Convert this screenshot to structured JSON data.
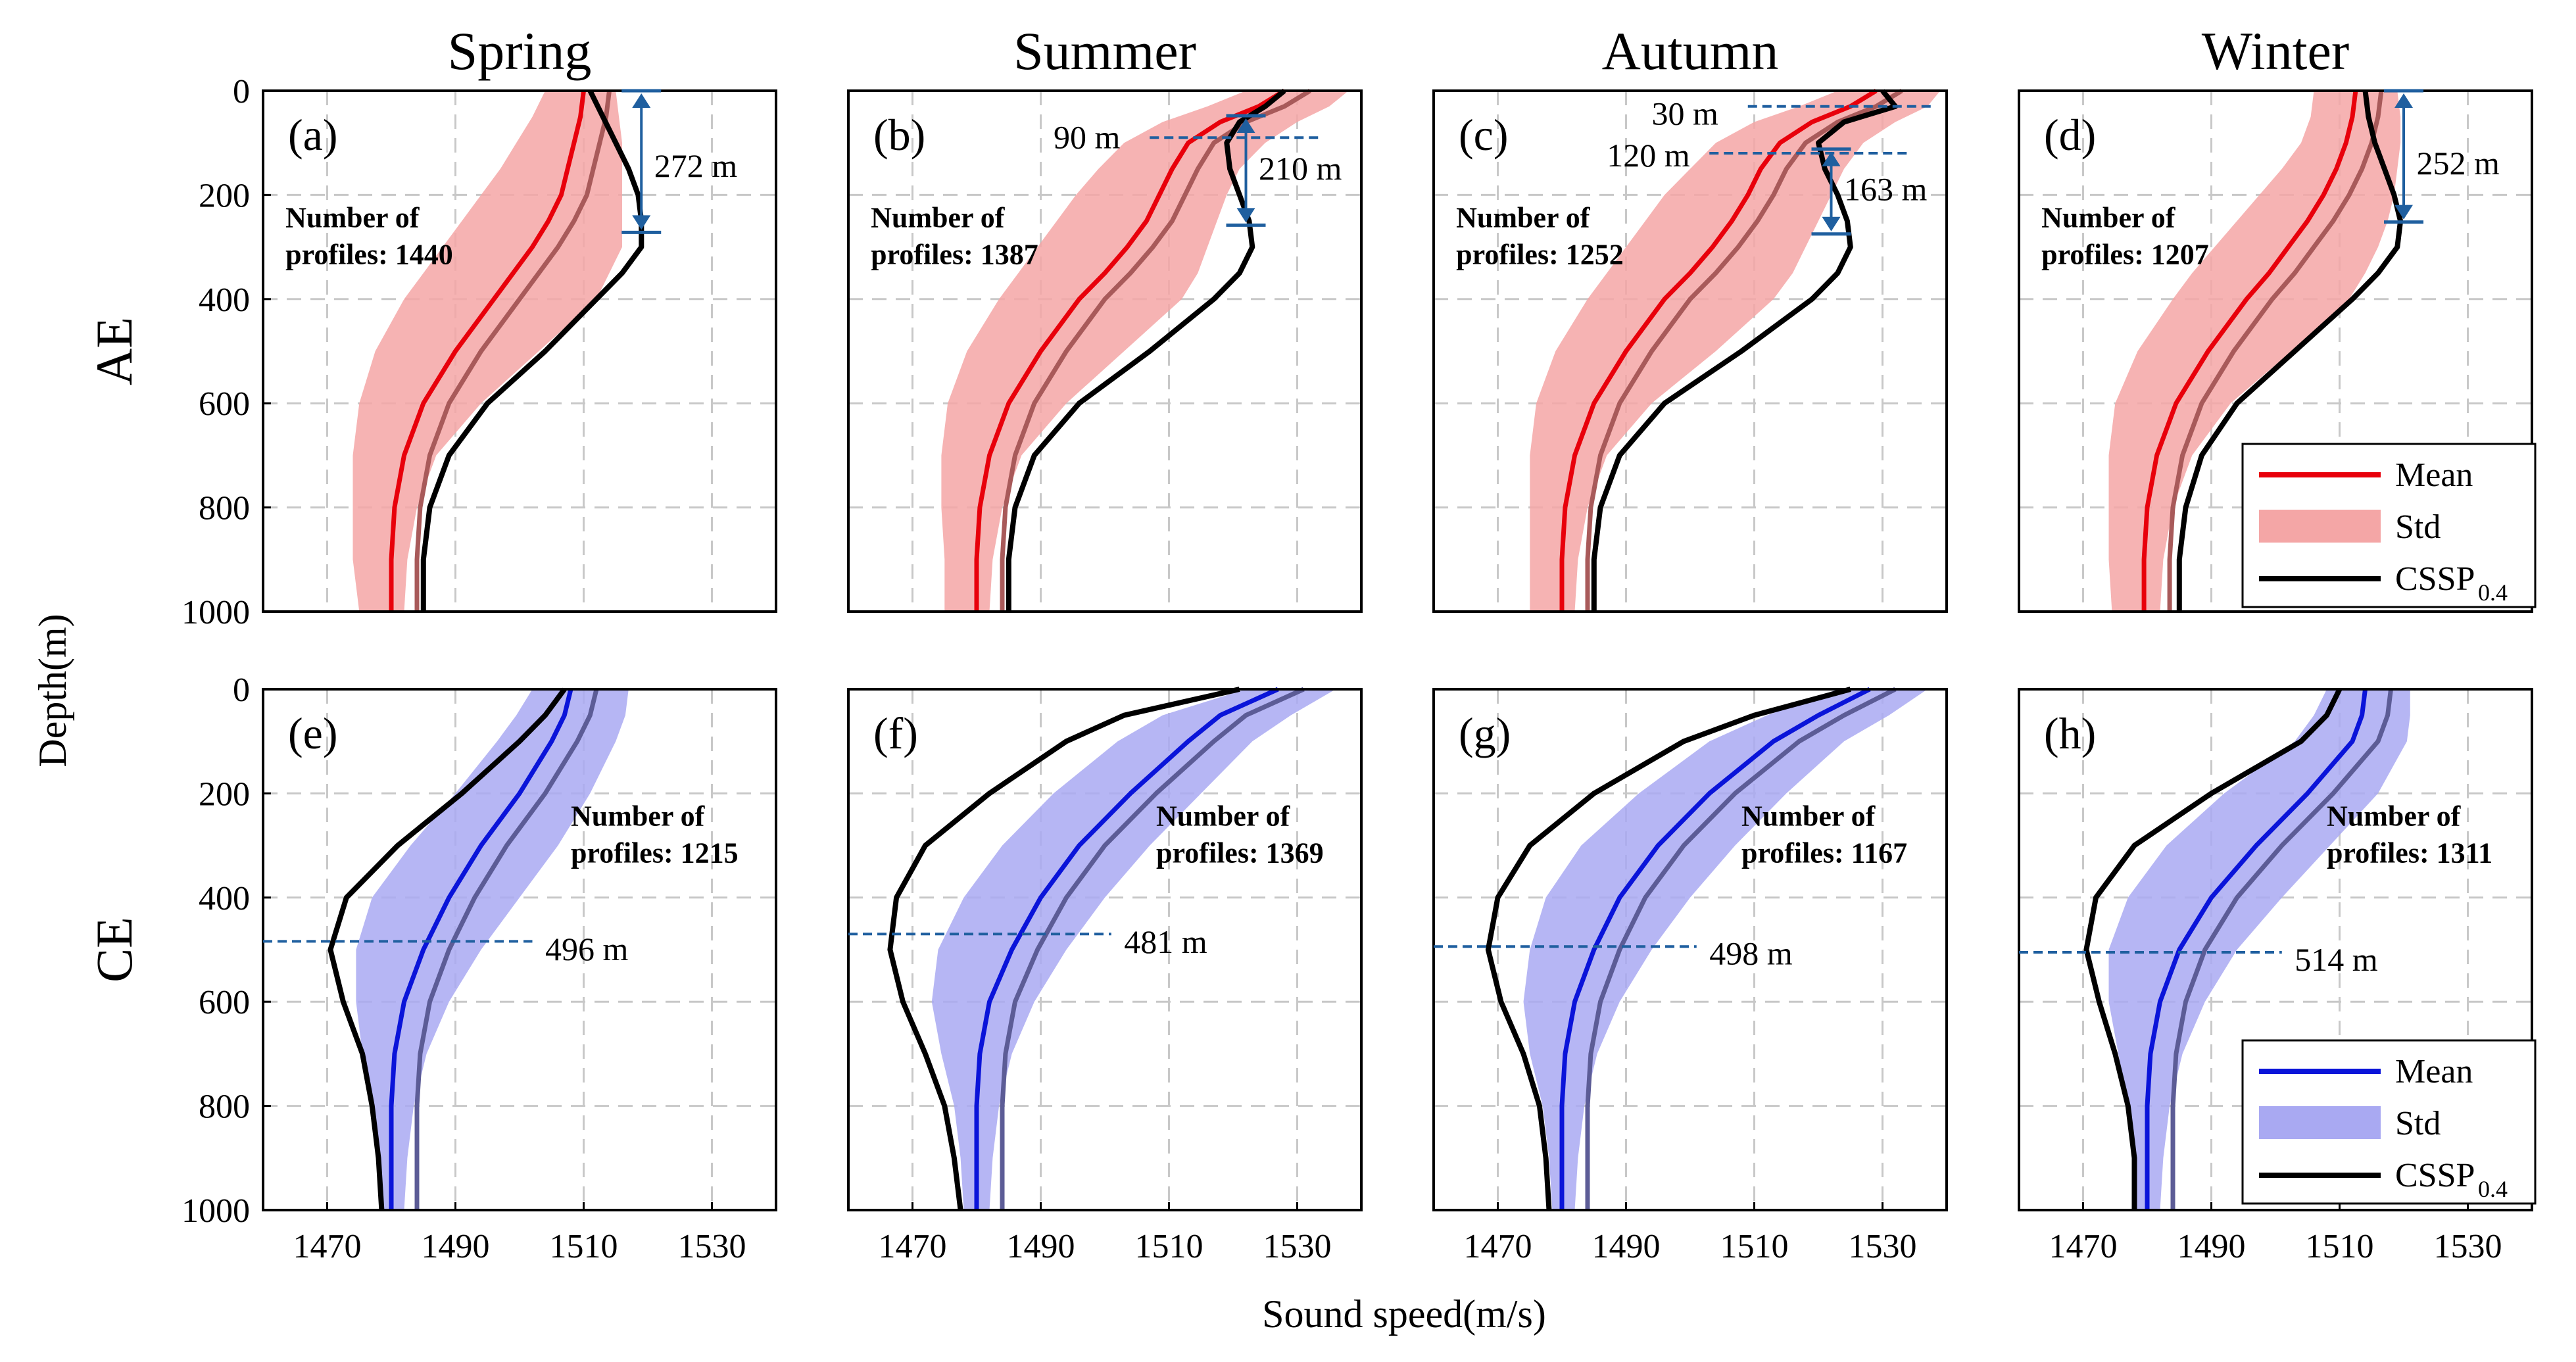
{
  "chart_data": {
    "type": "line",
    "xlabel": "Sound speed(m/s)",
    "ylabel": "Depth(m)",
    "xlim": [
      1460,
      1540
    ],
    "ylim": [
      0,
      1000
    ],
    "y_inverted": true,
    "xticks": [
      1470,
      1490,
      1510,
      1530
    ],
    "yticks": [
      0,
      200,
      400,
      600,
      800,
      1000
    ],
    "grid": true,
    "seasons": [
      "Spring",
      "Summer",
      "Autumn",
      "Winter"
    ],
    "rows": [
      "AE",
      "CE"
    ],
    "colors": {
      "ae_mean": "#e8000b",
      "ae_std": "#f4a6a6",
      "ce_mean": "#0a14d9",
      "ce_std": "#a9a9f2",
      "cssp": "#000000",
      "annotation": "#1f5f9f"
    },
    "legend_ae": {
      "items": [
        "Mean",
        "Std",
        "CSSP_0.4"
      ],
      "mean": "Mean",
      "std": "Std",
      "cssp_base": "CSSP",
      "cssp_sub": "0.4",
      "location": "bottom-right of panel (d)"
    },
    "legend_ce": {
      "items": [
        "Mean",
        "Std",
        "CSSP_0.4"
      ],
      "mean": "Mean",
      "std": "Std",
      "cssp_base": "CSSP",
      "cssp_sub": "0.4",
      "location": "bottom-right of panel (h)"
    },
    "panels": [
      {
        "label": "(a)",
        "row": "AE",
        "season": "Spring",
        "count_line1": "Number of",
        "count_line2": "profiles: 1440",
        "depth": [
          0,
          50,
          100,
          150,
          200,
          250,
          300,
          350,
          400,
          500,
          600,
          700,
          800,
          900,
          1000
        ],
        "mean": [
          1510,
          1509.5,
          1508.5,
          1507.5,
          1506.5,
          1504.5,
          1502,
          1499,
          1496,
          1490,
          1485,
          1482,
          1480.5,
          1480,
          1480
        ],
        "std_low": [
          1504,
          1502,
          1499.5,
          1497,
          1494,
          1491,
          1488,
          1485,
          1482,
          1477.5,
          1475,
          1474,
          1474,
          1474,
          1475
        ],
        "std_high": [
          1515,
          1515.5,
          1516,
          1516,
          1516,
          1516,
          1516,
          1514,
          1512,
          1503,
          1494,
          1487,
          1484,
          1482.5,
          1482
        ],
        "cssp": [
          1511,
          1513,
          1515,
          1517,
          1518.5,
          1519,
          1519,
          1516,
          1512,
          1504,
          1495,
          1489,
          1486,
          1485,
          1485
        ],
        "cssp_labels": [
          "272 m"
        ]
      },
      {
        "label": "(b)",
        "row": "AE",
        "season": "Summer",
        "count_line1": "Number of",
        "count_line2": "profiles: 1387",
        "depth": [
          0,
          30,
          60,
          100,
          150,
          200,
          250,
          300,
          350,
          400,
          500,
          600,
          700,
          800,
          900,
          1000
        ],
        "mean": [
          1528,
          1524,
          1518,
          1513,
          1510.5,
          1508.5,
          1506.5,
          1503.5,
          1500,
          1496,
          1490,
          1485,
          1482,
          1480.5,
          1480,
          1480
        ],
        "std_low": [
          1522,
          1516,
          1509,
          1503,
          1499,
          1495.5,
          1492.5,
          1489.5,
          1486.5,
          1483.5,
          1478.5,
          1475.5,
          1474.5,
          1474.5,
          1475,
          1475
        ],
        "std_high": [
          1538,
          1535,
          1530,
          1525,
          1521,
          1519,
          1517.5,
          1516,
          1514.5,
          1512,
          1503,
          1494,
          1487,
          1484,
          1482.5,
          1482
        ],
        "cssp": [
          1528,
          1525,
          1521,
          1519,
          1519.5,
          1521,
          1522.5,
          1523,
          1521,
          1517,
          1507,
          1496,
          1489,
          1486,
          1485,
          1485
        ],
        "cssp_labels": [
          "90 m",
          "210 m"
        ]
      },
      {
        "label": "(c)",
        "row": "AE",
        "season": "Autumn",
        "count_line1": "Number of",
        "count_line2": "profiles: 1252",
        "depth": [
          0,
          30,
          60,
          100,
          150,
          200,
          250,
          300,
          350,
          400,
          500,
          600,
          700,
          800,
          900,
          1000
        ],
        "mean": [
          1529,
          1525,
          1519,
          1514,
          1511,
          1509,
          1506.5,
          1503.5,
          1500,
          1496,
          1490,
          1485,
          1482,
          1480.5,
          1480,
          1480
        ],
        "std_low": [
          1523,
          1517,
          1510,
          1504,
          1500,
          1496,
          1493,
          1490,
          1487,
          1484,
          1479,
          1476,
          1475,
          1475,
          1475,
          1475
        ],
        "std_high": [
          1539,
          1537,
          1532,
          1527,
          1524,
          1522,
          1520,
          1518,
          1516,
          1513,
          1504,
          1494,
          1487,
          1484,
          1482.5,
          1482
        ],
        "cssp": [
          1530,
          1532,
          1524,
          1520,
          1521,
          1523,
          1524.5,
          1525,
          1523,
          1519,
          1508,
          1496,
          1489,
          1486,
          1485,
          1485
        ],
        "cssp_labels": [
          "30 m",
          "120 m",
          "163 m"
        ]
      },
      {
        "label": "(d)",
        "row": "AE",
        "season": "Winter",
        "count_line1": "Number of",
        "count_line2": "profiles: 1207",
        "depth": [
          0,
          50,
          100,
          150,
          200,
          250,
          300,
          350,
          400,
          500,
          600,
          700,
          800,
          900,
          1000
        ],
        "mean": [
          1512.5,
          1512,
          1511,
          1509.5,
          1507.5,
          1505,
          1502,
          1499,
          1495.5,
          1489.5,
          1484.5,
          1481.5,
          1480,
          1479.5,
          1479.5
        ],
        "std_low": [
          1506,
          1505.5,
          1504,
          1501,
          1497.5,
          1494,
          1490.5,
          1487,
          1484,
          1478.5,
          1475,
          1474,
          1474,
          1474,
          1474.5
        ],
        "std_high": [
          1519,
          1519.5,
          1519.5,
          1519,
          1518.5,
          1517.5,
          1516,
          1514,
          1511.5,
          1502.5,
          1493,
          1487,
          1484,
          1482.5,
          1482
        ],
        "cssp": [
          1514,
          1514.5,
          1515.5,
          1517,
          1518.5,
          1519.5,
          1519,
          1516,
          1512,
          1503,
          1494,
          1488.5,
          1486,
          1485,
          1485
        ],
        "cssp_labels": [
          "252 m"
        ]
      },
      {
        "label": "(e)",
        "row": "CE",
        "season": "Spring",
        "count_line1": "Number of",
        "count_line2": "profiles: 1215",
        "depth": [
          0,
          50,
          100,
          200,
          300,
          400,
          500,
          600,
          700,
          800,
          900,
          1000
        ],
        "mean": [
          1508,
          1507,
          1505,
          1500,
          1494,
          1489,
          1485,
          1482,
          1480.5,
          1480,
          1480,
          1480
        ],
        "std_low": [
          1502,
          1499.5,
          1496.5,
          1490,
          1483,
          1477,
          1474.5,
          1474.5,
          1475.5,
          1477,
          1478,
          1478.5
        ],
        "std_high": [
          1517,
          1516.5,
          1515,
          1511,
          1506,
          1500,
          1494,
          1489,
          1485.5,
          1483.5,
          1482.5,
          1482
        ],
        "cssp": [
          1507,
          1504,
          1500,
          1491,
          1481,
          1473,
          1470.5,
          1472.5,
          1475.5,
          1477,
          1478,
          1478.5
        ],
        "cssp_labels": [
          "496 m"
        ]
      },
      {
        "label": "(f)",
        "row": "CE",
        "season": "Summer",
        "count_line1": "Number of",
        "count_line2": "profiles: 1369",
        "depth": [
          0,
          50,
          100,
          200,
          300,
          400,
          500,
          600,
          700,
          800,
          900,
          1000
        ],
        "mean": [
          1527,
          1518,
          1513,
          1504,
          1496,
          1490,
          1485.5,
          1482,
          1480.5,
          1480,
          1480,
          1480
        ],
        "std_low": [
          1522,
          1509,
          1502,
          1492,
          1484,
          1478,
          1474,
          1473,
          1474.5,
          1476.5,
          1477.5,
          1478
        ],
        "std_high": [
          1536,
          1529,
          1523,
          1515,
          1507,
          1500,
          1494,
          1489,
          1485.5,
          1483.5,
          1482.5,
          1482
        ],
        "cssp": [
          1521,
          1503,
          1494,
          1482,
          1472,
          1467.5,
          1466.5,
          1468.5,
          1472,
          1475,
          1476.5,
          1477.5
        ],
        "cssp_labels": [
          "481 m"
        ]
      },
      {
        "label": "(g)",
        "row": "CE",
        "season": "Autumn",
        "count_line1": "Number of",
        "count_line2": "profiles: 1167",
        "depth": [
          0,
          50,
          100,
          200,
          300,
          400,
          500,
          600,
          700,
          800,
          900,
          1000
        ],
        "mean": [
          1528,
          1520,
          1513,
          1503,
          1495,
          1489,
          1485,
          1482,
          1480.5,
          1480,
          1480,
          1480
        ],
        "std_low": [
          1523,
          1512,
          1503,
          1492,
          1483,
          1477.5,
          1475,
          1474,
          1475,
          1477,
          1478,
          1478.5
        ],
        "std_high": [
          1537,
          1531,
          1524,
          1515,
          1507,
          1500,
          1494,
          1489,
          1485.5,
          1483.5,
          1482.5,
          1482
        ],
        "cssp": [
          1525,
          1510,
          1499,
          1485,
          1475,
          1470,
          1468.5,
          1470.5,
          1474,
          1476.5,
          1477.5,
          1478
        ],
        "cssp_labels": [
          "498 m"
        ]
      },
      {
        "label": "(h)",
        "row": "CE",
        "season": "Winter",
        "count_line1": "Number of",
        "count_line2": "profiles: 1311",
        "depth": [
          0,
          50,
          100,
          200,
          300,
          400,
          500,
          600,
          700,
          800,
          900,
          1000
        ],
        "mean": [
          1514,
          1513.5,
          1512,
          1505,
          1497,
          1490,
          1485,
          1482,
          1480.5,
          1480,
          1480,
          1480
        ],
        "std_low": [
          1508,
          1506,
          1503,
          1492,
          1483,
          1477,
          1474,
          1474,
          1475.5,
          1477,
          1478,
          1478
        ],
        "std_high": [
          1521,
          1521,
          1520.5,
          1516,
          1508.5,
          1501,
          1494,
          1489,
          1485.5,
          1483.5,
          1482.5,
          1482
        ],
        "cssp": [
          1510,
          1508,
          1504,
          1490,
          1478,
          1472,
          1470.5,
          1472.5,
          1475,
          1477,
          1478,
          1478
        ],
        "cssp_labels": [
          "514 m"
        ]
      }
    ]
  }
}
